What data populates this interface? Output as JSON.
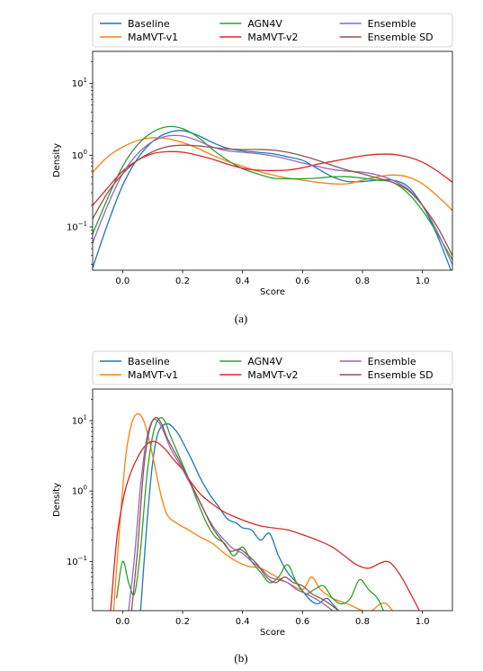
{
  "chart_data": [
    {
      "type": "line",
      "caption": "(a)",
      "xlabel": "Score",
      "ylabel": "Density",
      "xlim": [
        -0.1,
        1.1
      ],
      "ylim": [
        0.025,
        28
      ],
      "yscale": "log",
      "xticks": [
        {
          "v": 0.0,
          "t": "0.0"
        },
        {
          "v": 0.2,
          "t": "0.2"
        },
        {
          "v": 0.4,
          "t": "0.4"
        },
        {
          "v": 0.6,
          "t": "0.6"
        },
        {
          "v": 0.8,
          "t": "0.8"
        },
        {
          "v": 1.0,
          "t": "1.0"
        }
      ],
      "yticks": [
        {
          "v": 0.1,
          "b": "10",
          "e": "−1"
        },
        {
          "v": 1,
          "b": "10",
          "e": "0"
        },
        {
          "v": 10,
          "b": "10",
          "e": "1"
        }
      ],
      "legend": {
        "position": "top",
        "columns": 3
      },
      "series": [
        {
          "name": "Baseline",
          "color": "#1f77b4",
          "x": [
            -0.1,
            -0.05,
            0.0,
            0.05,
            0.1,
            0.15,
            0.2,
            0.25,
            0.3,
            0.35,
            0.4,
            0.45,
            0.5,
            0.55,
            0.6,
            0.65,
            0.7,
            0.75,
            0.8,
            0.85,
            0.9,
            0.95,
            1.0,
            1.05,
            1.1
          ],
          "y": [
            0.027,
            0.11,
            0.38,
            0.9,
            1.55,
            2.05,
            2.2,
            1.9,
            1.5,
            1.25,
            1.15,
            1.1,
            1.05,
            0.95,
            0.85,
            0.65,
            0.5,
            0.43,
            0.43,
            0.45,
            0.45,
            0.37,
            0.2,
            0.075,
            0.022
          ]
        },
        {
          "name": "MaMVT-v1",
          "color": "#ff7f0e",
          "x": [
            -0.1,
            -0.05,
            0.0,
            0.05,
            0.1,
            0.15,
            0.2,
            0.25,
            0.3,
            0.35,
            0.4,
            0.45,
            0.5,
            0.55,
            0.6,
            0.65,
            0.7,
            0.75,
            0.8,
            0.85,
            0.9,
            0.95,
            1.0,
            1.05,
            1.1
          ],
          "y": [
            0.58,
            0.95,
            1.3,
            1.6,
            1.75,
            1.7,
            1.5,
            1.25,
            1.0,
            0.82,
            0.7,
            0.6,
            0.53,
            0.48,
            0.45,
            0.42,
            0.4,
            0.4,
            0.45,
            0.5,
            0.53,
            0.5,
            0.4,
            0.27,
            0.17
          ]
        },
        {
          "name": "AGN4V",
          "color": "#2ca02c",
          "x": [
            -0.1,
            -0.05,
            0.0,
            0.05,
            0.1,
            0.15,
            0.2,
            0.25,
            0.3,
            0.35,
            0.4,
            0.45,
            0.5,
            0.55,
            0.6,
            0.65,
            0.7,
            0.75,
            0.8,
            0.85,
            0.9,
            0.95,
            1.0,
            1.05,
            1.1
          ],
          "y": [
            0.08,
            0.25,
            0.7,
            1.4,
            2.1,
            2.5,
            2.35,
            1.8,
            1.2,
            0.85,
            0.65,
            0.55,
            0.48,
            0.47,
            0.47,
            0.48,
            0.5,
            0.5,
            0.48,
            0.45,
            0.42,
            0.3,
            0.17,
            0.08,
            0.035
          ]
        },
        {
          "name": "MaMVT-v2",
          "color": "#d62728",
          "x": [
            -0.1,
            -0.05,
            0.0,
            0.05,
            0.1,
            0.15,
            0.2,
            0.25,
            0.3,
            0.35,
            0.4,
            0.45,
            0.5,
            0.55,
            0.6,
            0.65,
            0.7,
            0.75,
            0.8,
            0.85,
            0.9,
            0.95,
            1.0,
            1.05,
            1.1
          ],
          "y": [
            0.2,
            0.35,
            0.6,
            0.85,
            1.05,
            1.12,
            1.1,
            1.0,
            0.88,
            0.75,
            0.66,
            0.62,
            0.61,
            0.62,
            0.67,
            0.75,
            0.82,
            0.9,
            0.98,
            1.03,
            1.03,
            0.95,
            0.8,
            0.6,
            0.42
          ]
        },
        {
          "name": "Ensemble",
          "color": "#9467bd",
          "x": [
            -0.1,
            -0.05,
            0.0,
            0.05,
            0.1,
            0.15,
            0.2,
            0.25,
            0.3,
            0.35,
            0.4,
            0.45,
            0.5,
            0.55,
            0.6,
            0.65,
            0.7,
            0.75,
            0.8,
            0.85,
            0.9,
            0.95,
            1.0,
            1.05,
            1.1
          ],
          "y": [
            0.06,
            0.2,
            0.55,
            1.05,
            1.55,
            1.85,
            1.85,
            1.6,
            1.3,
            1.15,
            1.1,
            1.05,
            0.98,
            0.88,
            0.78,
            0.7,
            0.63,
            0.6,
            0.58,
            0.53,
            0.45,
            0.34,
            0.2,
            0.085,
            0.03
          ]
        },
        {
          "name": "Ensemble SD",
          "color": "#8c564b",
          "x": [
            -0.1,
            -0.05,
            0.0,
            0.05,
            0.1,
            0.15,
            0.2,
            0.25,
            0.3,
            0.35,
            0.4,
            0.45,
            0.5,
            0.55,
            0.6,
            0.65,
            0.7,
            0.75,
            0.8,
            0.85,
            0.9,
            0.95,
            1.0,
            1.05,
            1.1
          ],
          "y": [
            0.13,
            0.3,
            0.55,
            0.85,
            1.12,
            1.32,
            1.38,
            1.35,
            1.28,
            1.22,
            1.2,
            1.2,
            1.18,
            1.1,
            0.98,
            0.85,
            0.72,
            0.62,
            0.55,
            0.48,
            0.42,
            0.33,
            0.2,
            0.1,
            0.04
          ]
        }
      ]
    },
    {
      "type": "line",
      "caption": "(b)",
      "xlabel": "Score",
      "ylabel": "Density",
      "xlim": [
        -0.1,
        1.1
      ],
      "ylim": [
        0.02,
        28
      ],
      "yscale": "log",
      "xticks": [
        {
          "v": 0.0,
          "t": "0.0"
        },
        {
          "v": 0.2,
          "t": "0.2"
        },
        {
          "v": 0.4,
          "t": "0.4"
        },
        {
          "v": 0.6,
          "t": "0.6"
        },
        {
          "v": 0.8,
          "t": "0.8"
        },
        {
          "v": 1.0,
          "t": "1.0"
        }
      ],
      "yticks": [
        {
          "v": 0.1,
          "b": "10",
          "e": "−1"
        },
        {
          "v": 1,
          "b": "10",
          "e": "0"
        },
        {
          "v": 10,
          "b": "10",
          "e": "1"
        }
      ],
      "legend": {
        "position": "top",
        "columns": 3
      },
      "series": [
        {
          "name": "Baseline",
          "color": "#1f77b4",
          "x": [
            0.06,
            0.08,
            0.1,
            0.12,
            0.15,
            0.18,
            0.2,
            0.23,
            0.26,
            0.29,
            0.32,
            0.35,
            0.38,
            0.4,
            0.43,
            0.46,
            0.49,
            0.52,
            0.55,
            0.58,
            0.62,
            0.65,
            0.68,
            0.7,
            0.72
          ],
          "y": [
            0.02,
            0.3,
            2.5,
            7.0,
            9.0,
            7.0,
            5.0,
            2.8,
            1.5,
            0.9,
            0.6,
            0.4,
            0.35,
            0.3,
            0.28,
            0.2,
            0.25,
            0.12,
            0.07,
            0.05,
            0.03,
            0.025,
            0.03,
            0.025,
            0.02
          ]
        },
        {
          "name": "MaMVT-v1",
          "color": "#ff7f0e",
          "x": [
            -0.03,
            -0.01,
            0.01,
            0.03,
            0.05,
            0.07,
            0.09,
            0.11,
            0.13,
            0.15,
            0.18,
            0.22,
            0.26,
            0.3,
            0.34,
            0.38,
            0.42,
            0.46,
            0.5,
            0.55,
            0.6,
            0.63,
            0.66,
            0.7,
            0.75,
            0.8,
            0.83,
            0.86,
            0.88,
            0.9
          ],
          "y": [
            0.02,
            0.3,
            3.0,
            9.0,
            12.5,
            10.0,
            5.0,
            2.0,
            0.8,
            0.45,
            0.35,
            0.28,
            0.22,
            0.18,
            0.13,
            0.1,
            0.085,
            0.08,
            0.065,
            0.05,
            0.04,
            0.06,
            0.04,
            0.03,
            0.025,
            0.02,
            0.02,
            0.025,
            0.025,
            0.02
          ]
        },
        {
          "name": "AGN4V",
          "color": "#2ca02c",
          "x": [
            -0.02,
            0.0,
            0.02,
            0.04,
            0.06,
            0.08,
            0.1,
            0.12,
            0.14,
            0.16,
            0.19,
            0.22,
            0.25,
            0.28,
            0.31,
            0.34,
            0.37,
            0.4,
            0.43,
            0.46,
            0.49,
            0.52,
            0.55,
            0.58,
            0.61,
            0.64,
            0.67,
            0.7,
            0.73,
            0.76,
            0.79,
            0.82,
            0.85,
            0.87
          ],
          "y": [
            0.03,
            0.1,
            0.05,
            0.035,
            0.15,
            1.5,
            6.0,
            10.5,
            10.0,
            6.0,
            3.0,
            1.5,
            0.7,
            0.35,
            0.22,
            0.18,
            0.12,
            0.16,
            0.1,
            0.07,
            0.05,
            0.06,
            0.09,
            0.05,
            0.035,
            0.04,
            0.045,
            0.03,
            0.025,
            0.03,
            0.055,
            0.04,
            0.03,
            0.02
          ]
        },
        {
          "name": "MaMVT-v2",
          "color": "#d62728",
          "x": [
            -0.04,
            -0.02,
            0.0,
            0.02,
            0.05,
            0.08,
            0.11,
            0.14,
            0.17,
            0.2,
            0.23,
            0.26,
            0.3,
            0.34,
            0.38,
            0.42,
            0.46,
            0.5,
            0.55,
            0.6,
            0.65,
            0.7,
            0.74,
            0.78,
            0.82,
            0.86,
            0.88,
            0.9,
            0.93,
            0.96,
            0.99
          ],
          "y": [
            0.02,
            0.2,
            0.7,
            1.5,
            3.0,
            4.6,
            5.0,
            4.0,
            2.8,
            2.0,
            1.3,
            0.9,
            0.65,
            0.5,
            0.42,
            0.36,
            0.32,
            0.3,
            0.28,
            0.24,
            0.2,
            0.16,
            0.12,
            0.09,
            0.08,
            0.095,
            0.1,
            0.09,
            0.06,
            0.035,
            0.02
          ]
        },
        {
          "name": "Ensemble",
          "color": "#9467bd",
          "x": [
            0.02,
            0.04,
            0.06,
            0.08,
            0.1,
            0.12,
            0.14,
            0.16,
            0.19,
            0.22,
            0.25,
            0.28,
            0.31,
            0.34,
            0.37,
            0.4,
            0.43,
            0.46,
            0.49,
            0.52,
            0.55,
            0.58,
            0.61,
            0.64,
            0.67,
            0.7
          ],
          "y": [
            0.02,
            0.12,
            1.2,
            5.5,
            10.0,
            9.5,
            6.5,
            4.0,
            2.4,
            1.4,
            0.8,
            0.45,
            0.28,
            0.2,
            0.15,
            0.13,
            0.1,
            0.08,
            0.06,
            0.055,
            0.05,
            0.04,
            0.035,
            0.03,
            0.025,
            0.02
          ]
        },
        {
          "name": "Ensemble SD",
          "color": "#8c564b",
          "x": [
            0.03,
            0.05,
            0.07,
            0.09,
            0.11,
            0.13,
            0.15,
            0.18,
            0.21,
            0.24,
            0.27,
            0.3,
            0.33,
            0.36,
            0.39,
            0.42,
            0.45,
            0.48,
            0.51,
            0.54,
            0.57,
            0.6,
            0.63,
            0.66,
            0.69,
            0.72
          ],
          "y": [
            0.02,
            0.15,
            2.0,
            7.5,
            11.0,
            9.0,
            5.5,
            3.2,
            1.8,
            1.0,
            0.55,
            0.3,
            0.2,
            0.14,
            0.15,
            0.12,
            0.09,
            0.06,
            0.05,
            0.06,
            0.05,
            0.045,
            0.035,
            0.03,
            0.025,
            0.02
          ]
        }
      ]
    }
  ]
}
